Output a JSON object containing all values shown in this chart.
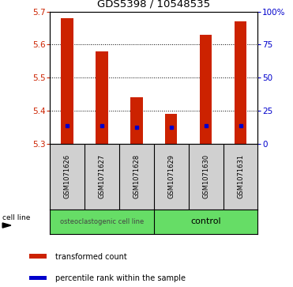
{
  "title": "GDS5398 / 10548535",
  "samples": [
    "GSM1071626",
    "GSM1071627",
    "GSM1071628",
    "GSM1071629",
    "GSM1071630",
    "GSM1071631"
  ],
  "bar_tops": [
    5.68,
    5.58,
    5.44,
    5.39,
    5.63,
    5.67
  ],
  "bar_bottoms": [
    5.3,
    5.3,
    5.3,
    5.3,
    5.3,
    5.3
  ],
  "percentile_values": [
    5.355,
    5.355,
    5.348,
    5.348,
    5.355,
    5.355
  ],
  "ylim": [
    5.3,
    5.7
  ],
  "yticks_left": [
    5.3,
    5.4,
    5.5,
    5.6,
    5.7
  ],
  "yticks_right": [
    0,
    25,
    50,
    75,
    100
  ],
  "bar_color": "#cc2200",
  "percentile_color": "#0000cc",
  "bg_label": "#d0d0d0",
  "bg_group1": "#66dd66",
  "bg_group2": "#66dd66",
  "group_labels": [
    "osteoclastogenic cell line",
    "control"
  ],
  "cell_line_label": "cell line",
  "legend_transformed": "transformed count",
  "legend_percentile": "percentile rank within the sample",
  "bar_width": 0.35,
  "figsize": [
    3.71,
    3.63
  ],
  "dpi": 100
}
